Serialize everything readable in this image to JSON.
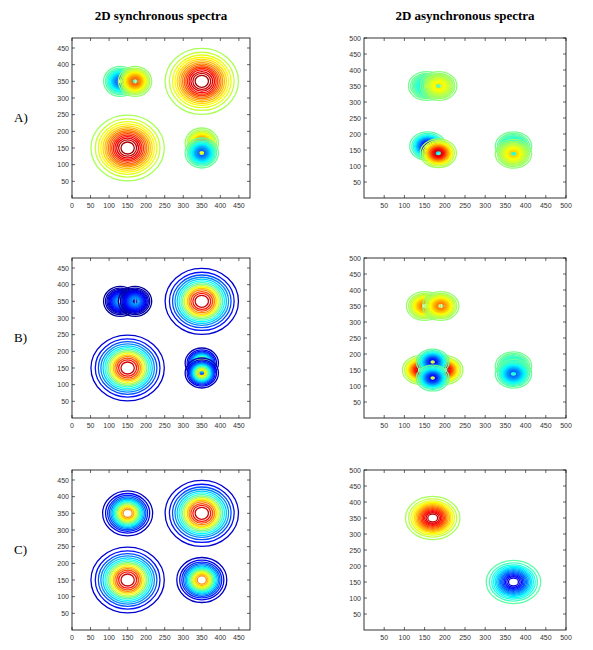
{
  "column_titles": [
    "2D synchronous spectra",
    "2D asynchronous spectra"
  ],
  "row_labels": [
    "A)",
    "B)",
    "C)"
  ],
  "chart_data": [
    {
      "type": "contour",
      "xlim": [
        0,
        480
      ],
      "ylim": [
        0,
        480
      ],
      "xticks": [
        0,
        50,
        100,
        150,
        200,
        250,
        300,
        350,
        400,
        450
      ],
      "yticks": [
        50,
        100,
        150,
        200,
        250,
        300,
        350,
        400,
        450
      ],
      "color_range": [
        -1,
        1
      ],
      "peaks": [
        {
          "x": 150,
          "y": 150,
          "width": 44,
          "amplitude": 1.0
        },
        {
          "x": 350,
          "y": 350,
          "width": 44,
          "amplitude": 1.0
        },
        {
          "x": 130,
          "y": 350,
          "width": 20,
          "amplitude": -0.6
        },
        {
          "x": 170,
          "y": 350,
          "width": 20,
          "amplitude": 0.6
        },
        {
          "x": 350,
          "y": 165,
          "width": 20,
          "amplitude": 0.6
        },
        {
          "x": 350,
          "y": 135,
          "width": 20,
          "amplitude": -0.6
        }
      ]
    },
    {
      "type": "contour",
      "xlim": [
        0,
        500
      ],
      "ylim": [
        0,
        500
      ],
      "xticks": [
        50,
        100,
        150,
        200,
        250,
        300,
        350,
        400,
        450,
        500
      ],
      "yticks": [
        50,
        100,
        150,
        200,
        250,
        300,
        350,
        400,
        450,
        500
      ],
      "color_range": [
        -1,
        1
      ],
      "peaks": [
        {
          "x": 155,
          "y": 350,
          "width": 20,
          "amplitude": -0.3
        },
        {
          "x": 185,
          "y": 350,
          "width": 20,
          "amplitude": 0.3
        },
        {
          "x": 158,
          "y": 162,
          "width": 20,
          "amplitude": -0.9
        },
        {
          "x": 184,
          "y": 140,
          "width": 20,
          "amplitude": 0.9
        },
        {
          "x": 370,
          "y": 162,
          "width": 20,
          "amplitude": -0.35
        },
        {
          "x": 370,
          "y": 138,
          "width": 20,
          "amplitude": 0.35
        }
      ]
    },
    {
      "type": "contour",
      "xlim": [
        0,
        480
      ],
      "ylim": [
        0,
        480
      ],
      "xticks": [
        0,
        50,
        100,
        150,
        200,
        250,
        300,
        350,
        400,
        450
      ],
      "yticks": [
        50,
        100,
        150,
        200,
        250,
        300,
        350,
        400,
        450
      ],
      "color_range": [
        0,
        1
      ],
      "peaks": [
        {
          "x": 150,
          "y": 150,
          "width": 44,
          "amplitude": 1.0
        },
        {
          "x": 350,
          "y": 350,
          "width": 44,
          "amplitude": 1.0
        },
        {
          "x": 130,
          "y": 350,
          "width": 20,
          "amplitude": 0.3
        },
        {
          "x": 170,
          "y": 350,
          "width": 20,
          "amplitude": 0.3
        },
        {
          "x": 350,
          "y": 165,
          "width": 20,
          "amplitude": 0.7
        },
        {
          "x": 350,
          "y": 135,
          "width": 20,
          "amplitude": 0.7
        }
      ]
    },
    {
      "type": "contour",
      "xlim": [
        0,
        500
      ],
      "ylim": [
        0,
        500
      ],
      "xticks": [
        50,
        100,
        150,
        200,
        250,
        300,
        350,
        400,
        450,
        500
      ],
      "yticks": [
        50,
        100,
        150,
        200,
        250,
        300,
        350,
        400,
        450,
        500
      ],
      "color_range": [
        -1,
        1
      ],
      "peaks": [
        {
          "x": 150,
          "y": 350,
          "width": 20,
          "amplitude": 0.55
        },
        {
          "x": 190,
          "y": 350,
          "width": 20,
          "amplitude": 0.55
        },
        {
          "x": 140,
          "y": 150,
          "width": 20,
          "amplitude": 0.9
        },
        {
          "x": 200,
          "y": 150,
          "width": 20,
          "amplitude": 0.9
        },
        {
          "x": 170,
          "y": 175,
          "width": 18,
          "amplitude": -0.8
        },
        {
          "x": 170,
          "y": 125,
          "width": 18,
          "amplitude": -0.8
        },
        {
          "x": 370,
          "y": 162,
          "width": 20,
          "amplitude": -0.35
        },
        {
          "x": 370,
          "y": 138,
          "width": 20,
          "amplitude": -0.6
        }
      ]
    },
    {
      "type": "contour",
      "xlim": [
        0,
        480
      ],
      "ylim": [
        0,
        480
      ],
      "xticks": [
        0,
        50,
        100,
        150,
        200,
        250,
        300,
        350,
        400,
        450
      ],
      "yticks": [
        50,
        100,
        150,
        200,
        250,
        300,
        350,
        400,
        450
      ],
      "color_range": [
        0,
        1
      ],
      "peaks": [
        {
          "x": 150,
          "y": 150,
          "width": 44,
          "amplitude": 1.0
        },
        {
          "x": 350,
          "y": 350,
          "width": 44,
          "amplitude": 1.0
        },
        {
          "x": 150,
          "y": 350,
          "width": 30,
          "amplitude": 0.8
        },
        {
          "x": 350,
          "y": 150,
          "width": 30,
          "amplitude": 0.8
        }
      ]
    },
    {
      "type": "contour",
      "xlim": [
        0,
        500
      ],
      "ylim": [
        0,
        500
      ],
      "xticks": [
        50,
        100,
        150,
        200,
        250,
        300,
        350,
        400,
        450,
        500
      ],
      "yticks": [
        50,
        100,
        150,
        200,
        250,
        300,
        350,
        400,
        450,
        500
      ],
      "color_range": [
        -1,
        1
      ],
      "peaks": [
        {
          "x": 170,
          "y": 350,
          "width": 30,
          "amplitude": 0.95
        },
        {
          "x": 370,
          "y": 150,
          "width": 30,
          "amplitude": -0.9
        }
      ]
    }
  ]
}
